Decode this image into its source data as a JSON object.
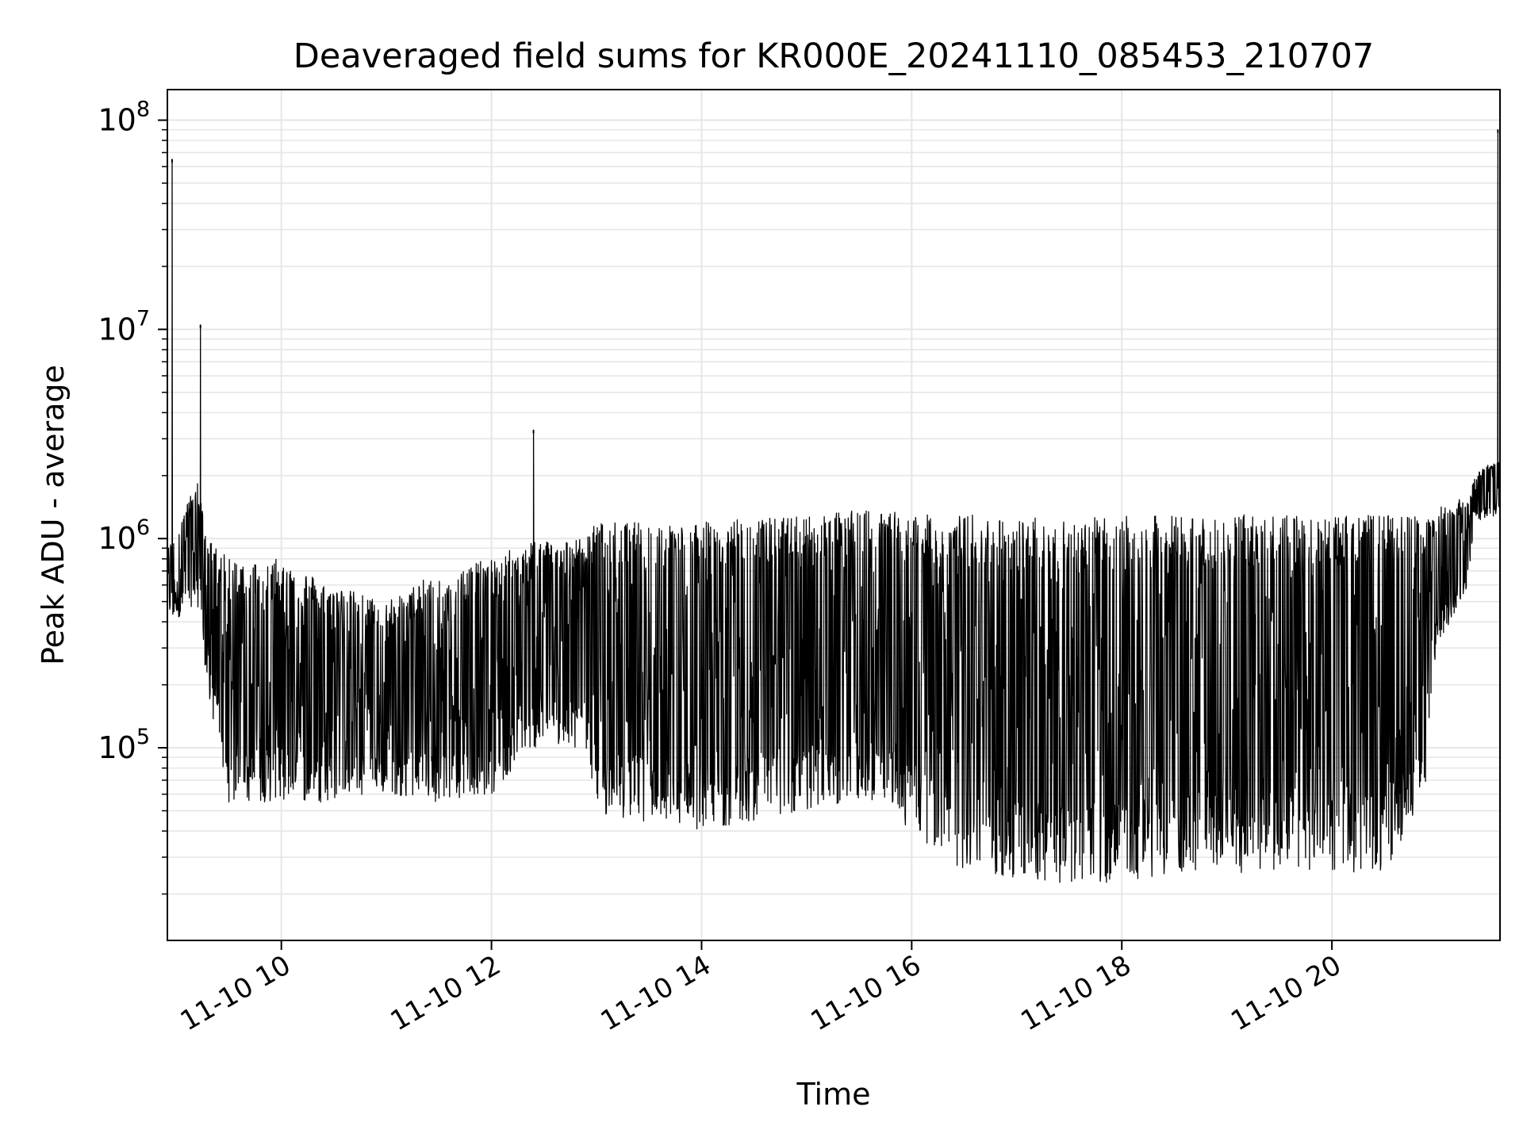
{
  "chart_data": {
    "type": "line",
    "title": "Deaveraged field sums for KR000E_20241110_085453_210707",
    "xlabel": "Time",
    "ylabel": "Peak ADU - average",
    "y_scale": "log",
    "ylim": [
      12000,
      140000000
    ],
    "x_range_hours": [
      8.915,
      21.6
    ],
    "grid": true,
    "line_color": "#000000",
    "grid_color": "#e6e6e6",
    "x_ticks": [
      {
        "value": 10,
        "label": "11-10 10"
      },
      {
        "value": 12,
        "label": "11-10 12"
      },
      {
        "value": 14,
        "label": "11-10 14"
      },
      {
        "value": 16,
        "label": "11-10 16"
      },
      {
        "value": 18,
        "label": "11-10 18"
      },
      {
        "value": 20,
        "label": "11-10 20"
      }
    ],
    "y_ticks": [
      {
        "value": 100000,
        "base": "10",
        "exp": "5"
      },
      {
        "value": 1000000,
        "base": "10",
        "exp": "6"
      },
      {
        "value": 10000000,
        "base": "10",
        "exp": "7"
      },
      {
        "value": 100000000,
        "base": "10",
        "exp": "8"
      }
    ],
    "envelope": [
      {
        "t": 8.92,
        "hi": 900000,
        "lo": 380000
      },
      {
        "t": 9.2,
        "hi": 1900000,
        "lo": 500000
      },
      {
        "t": 9.3,
        "hi": 1000000,
        "lo": 180000
      },
      {
        "t": 9.5,
        "hi": 800000,
        "lo": 55000
      },
      {
        "t": 10.0,
        "hi": 800000,
        "lo": 55000
      },
      {
        "t": 10.5,
        "hi": 600000,
        "lo": 55000
      },
      {
        "t": 11.0,
        "hi": 500000,
        "lo": 60000
      },
      {
        "t": 11.5,
        "hi": 700000,
        "lo": 55000
      },
      {
        "t": 12.0,
        "hi": 800000,
        "lo": 60000
      },
      {
        "t": 12.4,
        "hi": 1000000,
        "lo": 100000
      },
      {
        "t": 12.9,
        "hi": 1000000,
        "lo": 100000
      },
      {
        "t": 13.0,
        "hi": 1200000,
        "lo": 48000
      },
      {
        "t": 14.0,
        "hi": 1200000,
        "lo": 40000
      },
      {
        "t": 15.0,
        "hi": 1300000,
        "lo": 50000
      },
      {
        "t": 15.7,
        "hi": 1400000,
        "lo": 55000
      },
      {
        "t": 16.0,
        "hi": 1300000,
        "lo": 40000
      },
      {
        "t": 16.5,
        "hi": 1300000,
        "lo": 25000
      },
      {
        "t": 17.5,
        "hi": 1250000,
        "lo": 22000
      },
      {
        "t": 18.5,
        "hi": 1300000,
        "lo": 24000
      },
      {
        "t": 19.5,
        "hi": 1300000,
        "lo": 26000
      },
      {
        "t": 20.5,
        "hi": 1300000,
        "lo": 25000
      },
      {
        "t": 20.9,
        "hi": 1300000,
        "lo": 60000
      },
      {
        "t": 21.0,
        "hi": 1400000,
        "lo": 300000
      },
      {
        "t": 21.3,
        "hi": 1600000,
        "lo": 600000
      },
      {
        "t": 21.35,
        "hi": 2000000,
        "lo": 1200000
      },
      {
        "t": 21.6,
        "hi": 2500000,
        "lo": 1300000
      }
    ],
    "spikes": [
      {
        "t": 8.96,
        "v": 65000000
      },
      {
        "t": 9.23,
        "v": 10500000
      },
      {
        "t": 12.4,
        "v": 3300000
      },
      {
        "t": 21.58,
        "v": 90000000
      }
    ]
  }
}
